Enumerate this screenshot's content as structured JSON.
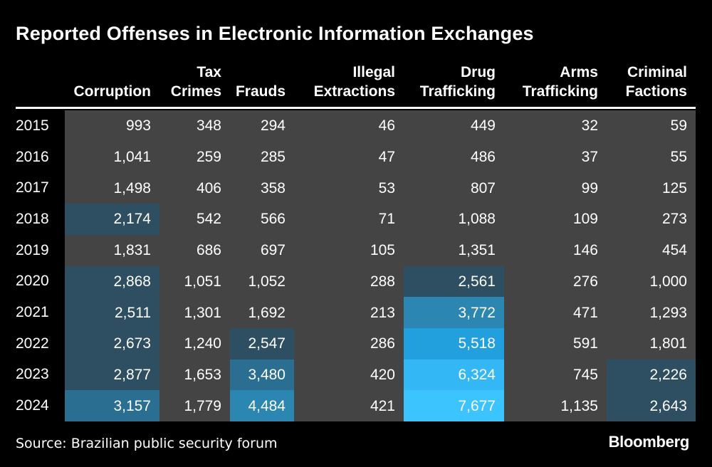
{
  "chart_data": {
    "type": "table",
    "title": "Reported Offenses in Electronic Information Exchanges",
    "columns": [
      {
        "line1": "",
        "line2": "Corruption"
      },
      {
        "line1": "Tax",
        "line2": "Crimes"
      },
      {
        "line1": "",
        "line2": "Frauds"
      },
      {
        "line1": "Illegal",
        "line2": "Extractions"
      },
      {
        "line1": "Drug",
        "line2": "Trafficking"
      },
      {
        "line1": "Arms",
        "line2": "Trafficking"
      },
      {
        "line1": "Criminal",
        "line2": "Factions"
      }
    ],
    "years": [
      "2015",
      "2016",
      "2017",
      "2018",
      "2019",
      "2020",
      "2021",
      "2022",
      "2023",
      "2024"
    ],
    "values": [
      [
        993,
        348,
        294,
        46,
        449,
        32,
        59
      ],
      [
        1041,
        259,
        285,
        47,
        486,
        37,
        55
      ],
      [
        1498,
        406,
        358,
        53,
        807,
        99,
        125
      ],
      [
        2174,
        542,
        566,
        71,
        1088,
        109,
        273
      ],
      [
        1831,
        686,
        697,
        105,
        1351,
        146,
        454
      ],
      [
        2868,
        1051,
        1052,
        288,
        2561,
        276,
        1000
      ],
      [
        2511,
        1301,
        1692,
        213,
        3772,
        471,
        1293
      ],
      [
        2673,
        1240,
        2547,
        286,
        5518,
        591,
        1801
      ],
      [
        2877,
        1653,
        3480,
        420,
        6324,
        745,
        2226
      ],
      [
        3157,
        1779,
        4484,
        421,
        7677,
        1135,
        2643
      ]
    ],
    "heat_thresholds": [
      {
        "min": 7000,
        "color": "#3BC4FF"
      },
      {
        "min": 6000,
        "color": "#33B8F5"
      },
      {
        "min": 5000,
        "color": "#22A0DE"
      },
      {
        "min": 3700,
        "color": "#2B86B2"
      },
      {
        "min": 3100,
        "color": "#2A6E92"
      },
      {
        "min": 2000,
        "color": "#2E4E62"
      }
    ],
    "base_color": "#444444"
  },
  "source": "Source: Brazilian public security forum",
  "brand": "Bloomberg"
}
